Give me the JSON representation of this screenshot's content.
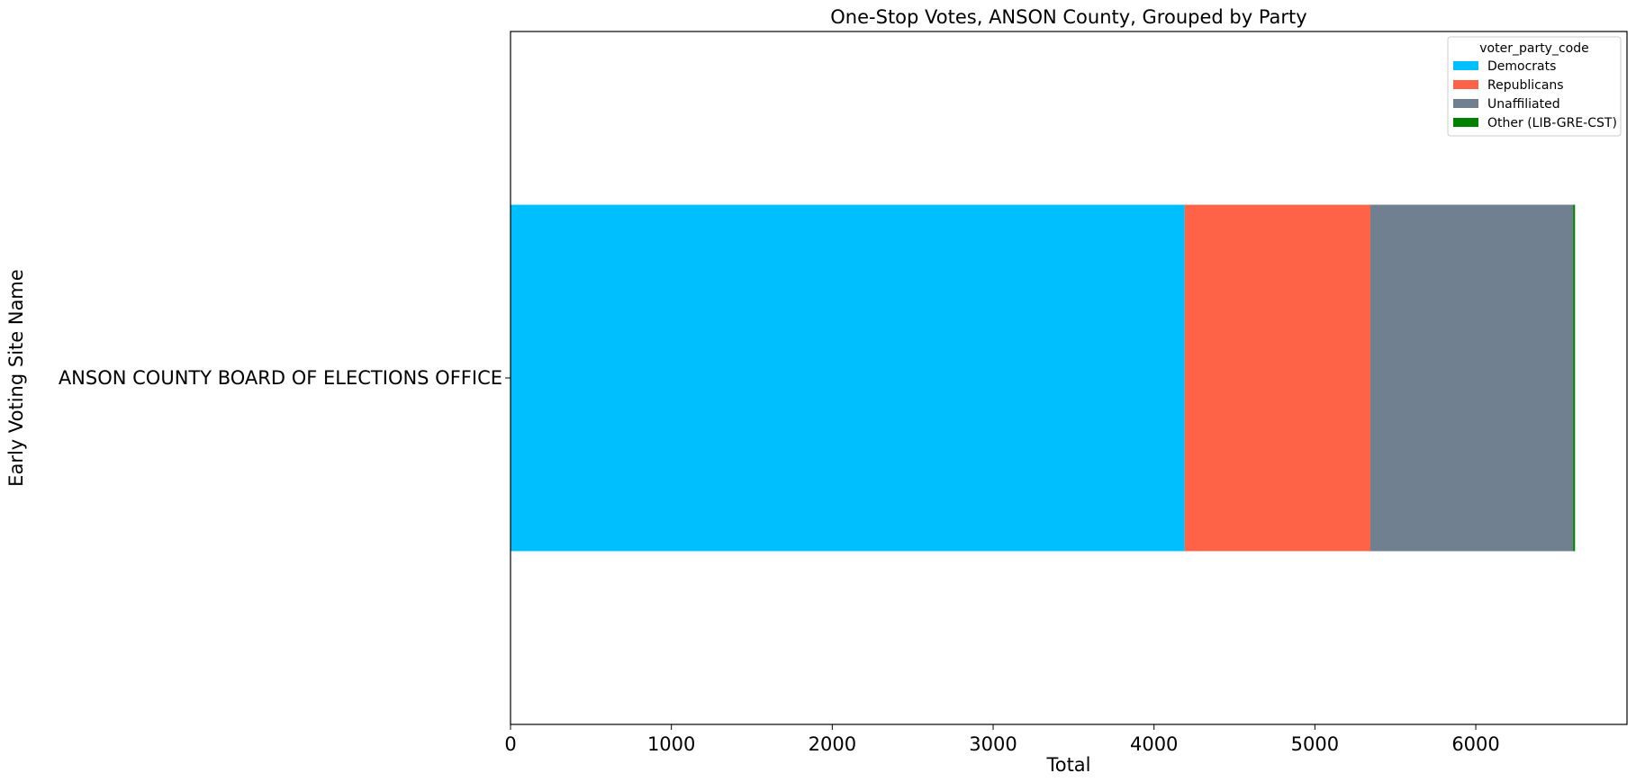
{
  "chart_data": {
    "type": "bar",
    "orientation": "horizontal",
    "stacked": true,
    "title": "One-Stop Votes, ANSON County, Grouped by Party",
    "xlabel": "Total",
    "ylabel": "Early Voting Site Name",
    "categories": [
      "ANSON COUNTY BOARD OF ELECTIONS OFFICE"
    ],
    "series": [
      {
        "name": "Democrats",
        "values": [
          4190
        ],
        "color": "#00BFFF"
      },
      {
        "name": "Republicans",
        "values": [
          1155
        ],
        "color": "#FF6347"
      },
      {
        "name": "Unaffiliated",
        "values": [
          1260
        ],
        "color": "#708090"
      },
      {
        "name": "Other (LIB-GRE-CST)",
        "values": [
          12
        ],
        "color": "#008000"
      }
    ],
    "xlim": [
      0,
      6940
    ],
    "xticks": [
      0,
      1000,
      2000,
      3000,
      4000,
      5000,
      6000
    ],
    "grid": false,
    "legend": {
      "title": "voter_party_code",
      "position": "top-right"
    }
  }
}
